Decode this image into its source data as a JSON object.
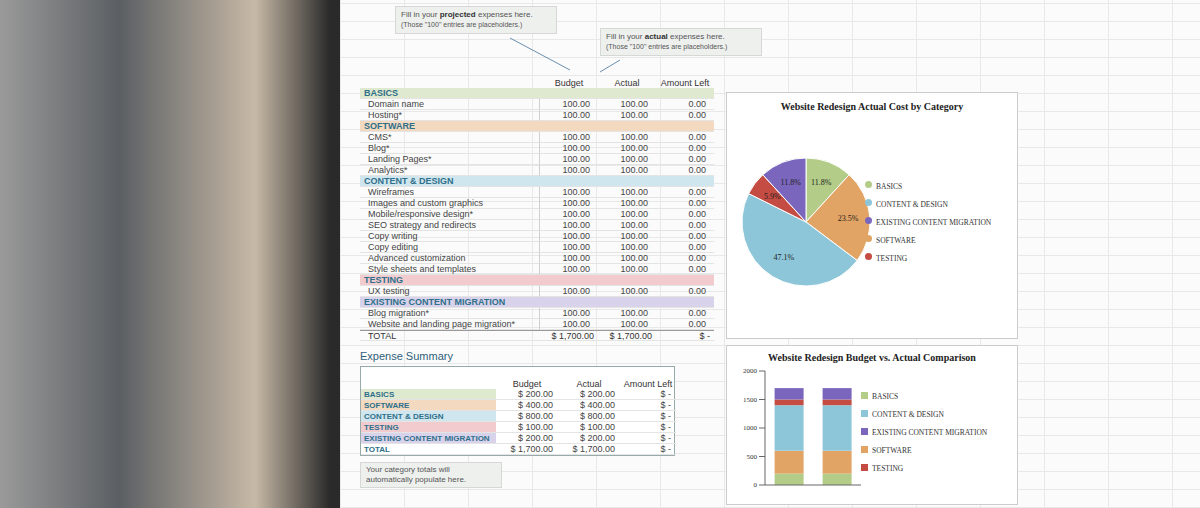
{
  "notes": [
    {
      "before": "Fill in your ",
      "bold": "projected",
      "after": " expenses here.",
      "sub": "(Those \"100\" entries are placeholders.)"
    },
    {
      "before": "Fill in your ",
      "bold": "actual",
      "after": " expenses here.",
      "sub": "(Those \"100\" entries are placeholders.)"
    }
  ],
  "expense_table": {
    "headers": [
      "Budget",
      "Actual",
      "Amount Left"
    ],
    "sections": [
      {
        "name": "BASICS",
        "rows": [
          [
            "Domain name",
            "100.00",
            "100.00",
            "0.00"
          ],
          [
            "Hosting*",
            "100.00",
            "100.00",
            "0.00"
          ]
        ]
      },
      {
        "name": "SOFTWARE",
        "rows": [
          [
            "CMS*",
            "100.00",
            "100.00",
            "0.00"
          ],
          [
            "Blog*",
            "100.00",
            "100.00",
            "0.00"
          ],
          [
            "Landing Pages*",
            "100.00",
            "100.00",
            "0.00"
          ],
          [
            "Analytics*",
            "100.00",
            "100.00",
            "0.00"
          ]
        ]
      },
      {
        "name": "CONTENT & DESIGN",
        "rows": [
          [
            "Wireframes",
            "100.00",
            "100.00",
            "0.00"
          ],
          [
            "Images and custom graphics",
            "100.00",
            "100.00",
            "0.00"
          ],
          [
            "Mobile/responsive design*",
            "100.00",
            "100.00",
            "0.00"
          ],
          [
            "SEO strategy and redirects",
            "100.00",
            "100.00",
            "0.00"
          ],
          [
            "Copy writing",
            "100.00",
            "100.00",
            "0.00"
          ],
          [
            "Copy editing",
            "100.00",
            "100.00",
            "0.00"
          ],
          [
            "Advanced customization",
            "100.00",
            "100.00",
            "0.00"
          ],
          [
            "Style sheets and templates",
            "100.00",
            "100.00",
            "0.00"
          ]
        ]
      },
      {
        "name": "TESTING",
        "rows": [
          [
            "UX testing",
            "100.00",
            "100.00",
            "0.00"
          ]
        ]
      },
      {
        "name": "EXISTING CONTENT MIGRATION",
        "rows": [
          [
            "Blog migration*",
            "100.00",
            "100.00",
            "0.00"
          ],
          [
            "Website and landing page migration*",
            "100.00",
            "100.00",
            "0.00"
          ]
        ]
      }
    ],
    "total": [
      "TOTAL",
      "$ 1,700.00",
      "$ 1,700.00",
      "$ -"
    ]
  },
  "expense_summary": {
    "title": "Expense Summary",
    "headers": [
      "Budget",
      "Actual",
      "Amount Left"
    ],
    "rows": [
      [
        "BASICS",
        "$ 200.00",
        "$ 200.00",
        "$ -"
      ],
      [
        "SOFTWARE",
        "$ 400.00",
        "$ 400.00",
        "$ -"
      ],
      [
        "CONTENT & DESIGN",
        "$ 800.00",
        "$ 800.00",
        "$ -"
      ],
      [
        "TESTING",
        "$ 100.00",
        "$ 100.00",
        "$ -"
      ],
      [
        "EXISTING CONTENT MIGRATION",
        "$ 200.00",
        "$ 200.00",
        "$ -"
      ],
      [
        "TOTAL",
        "$ 1,700.00",
        "$ 1,700.00",
        "$ -"
      ]
    ],
    "note": "Your category totals will automatically populate here."
  },
  "chart_data": [
    {
      "type": "pie",
      "title": "Website Redesign Actual Cost by Category",
      "categories": [
        "BASICS",
        "SOFTWARE",
        "CONTENT & DESIGN",
        "TESTING",
        "EXISTING CONTENT MIGRATION"
      ],
      "values": [
        11.8,
        23.5,
        47.1,
        5.9,
        11.8
      ],
      "value_labels": [
        "11.8%",
        "23.5%",
        "47.1%",
        "5.9%",
        "11.8%"
      ],
      "colors": [
        "#b3cd88",
        "#e2a465",
        "#8ec6d9",
        "#c44c42",
        "#7a67bd"
      ],
      "data_labels": true,
      "legend": "right"
    },
    {
      "type": "bar",
      "title": "Website Redesign Budget vs. Actual Comparison",
      "categories": [
        null,
        null
      ],
      "stacked": true,
      "series": [
        {
          "name": "BASICS",
          "color": "#b3cd88",
          "values": [
            200,
            200
          ]
        },
        {
          "name": "SOFTWARE",
          "color": "#e2a465",
          "values": [
            400,
            400
          ]
        },
        {
          "name": "CONTENT & DESIGN",
          "color": "#8ec6d9",
          "values": [
            800,
            800
          ]
        },
        {
          "name": "TESTING",
          "color": "#c44c42",
          "values": [
            100,
            100
          ]
        },
        {
          "name": "EXISTING CONTENT MIGRATION",
          "color": "#7a67bd",
          "values": [
            200,
            200
          ]
        }
      ],
      "ylim": [
        0,
        2000
      ],
      "yticks": [
        0,
        500,
        1000,
        1500,
        2000
      ],
      "legend": "right",
      "grid": false
    }
  ]
}
